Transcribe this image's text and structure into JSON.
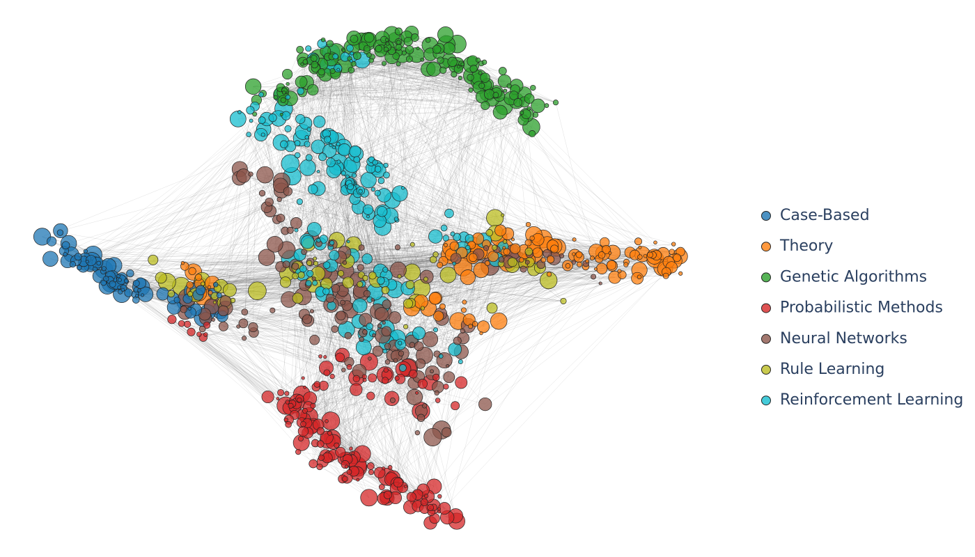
{
  "legend": {
    "items": [
      {
        "name": "Case-Based",
        "color": "#1f77b4"
      },
      {
        "name": "Theory",
        "color": "#ff7f0e"
      },
      {
        "name": "Genetic Algorithms",
        "color": "#2ca02c"
      },
      {
        "name": "Probabilistic Methods",
        "color": "#d62728"
      },
      {
        "name": "Neural Networks",
        "color": "#8c564b"
      },
      {
        "name": "Rule Learning",
        "color": "#bcbd22"
      },
      {
        "name": "Reinforcement Learning",
        "color": "#17becf"
      }
    ]
  }
}
